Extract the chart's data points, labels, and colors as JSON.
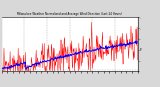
{
  "title": "Milwaukee Weather Normalized and Average Wind Direction (Last 24 Hours)",
  "background_color": "#d8d8d8",
  "plot_bg_color": "#ffffff",
  "grid_color": "#888888",
  "red_color": "#ff0000",
  "blue_color": "#0000ff",
  "ylim": [
    0,
    360
  ],
  "ytick_labels": [
    "",
    ".",
    "F",
    ".",
    ".",
    "."
  ],
  "n_points": 288,
  "seed": 42,
  "figsize": [
    1.6,
    0.87
  ],
  "dpi": 100
}
